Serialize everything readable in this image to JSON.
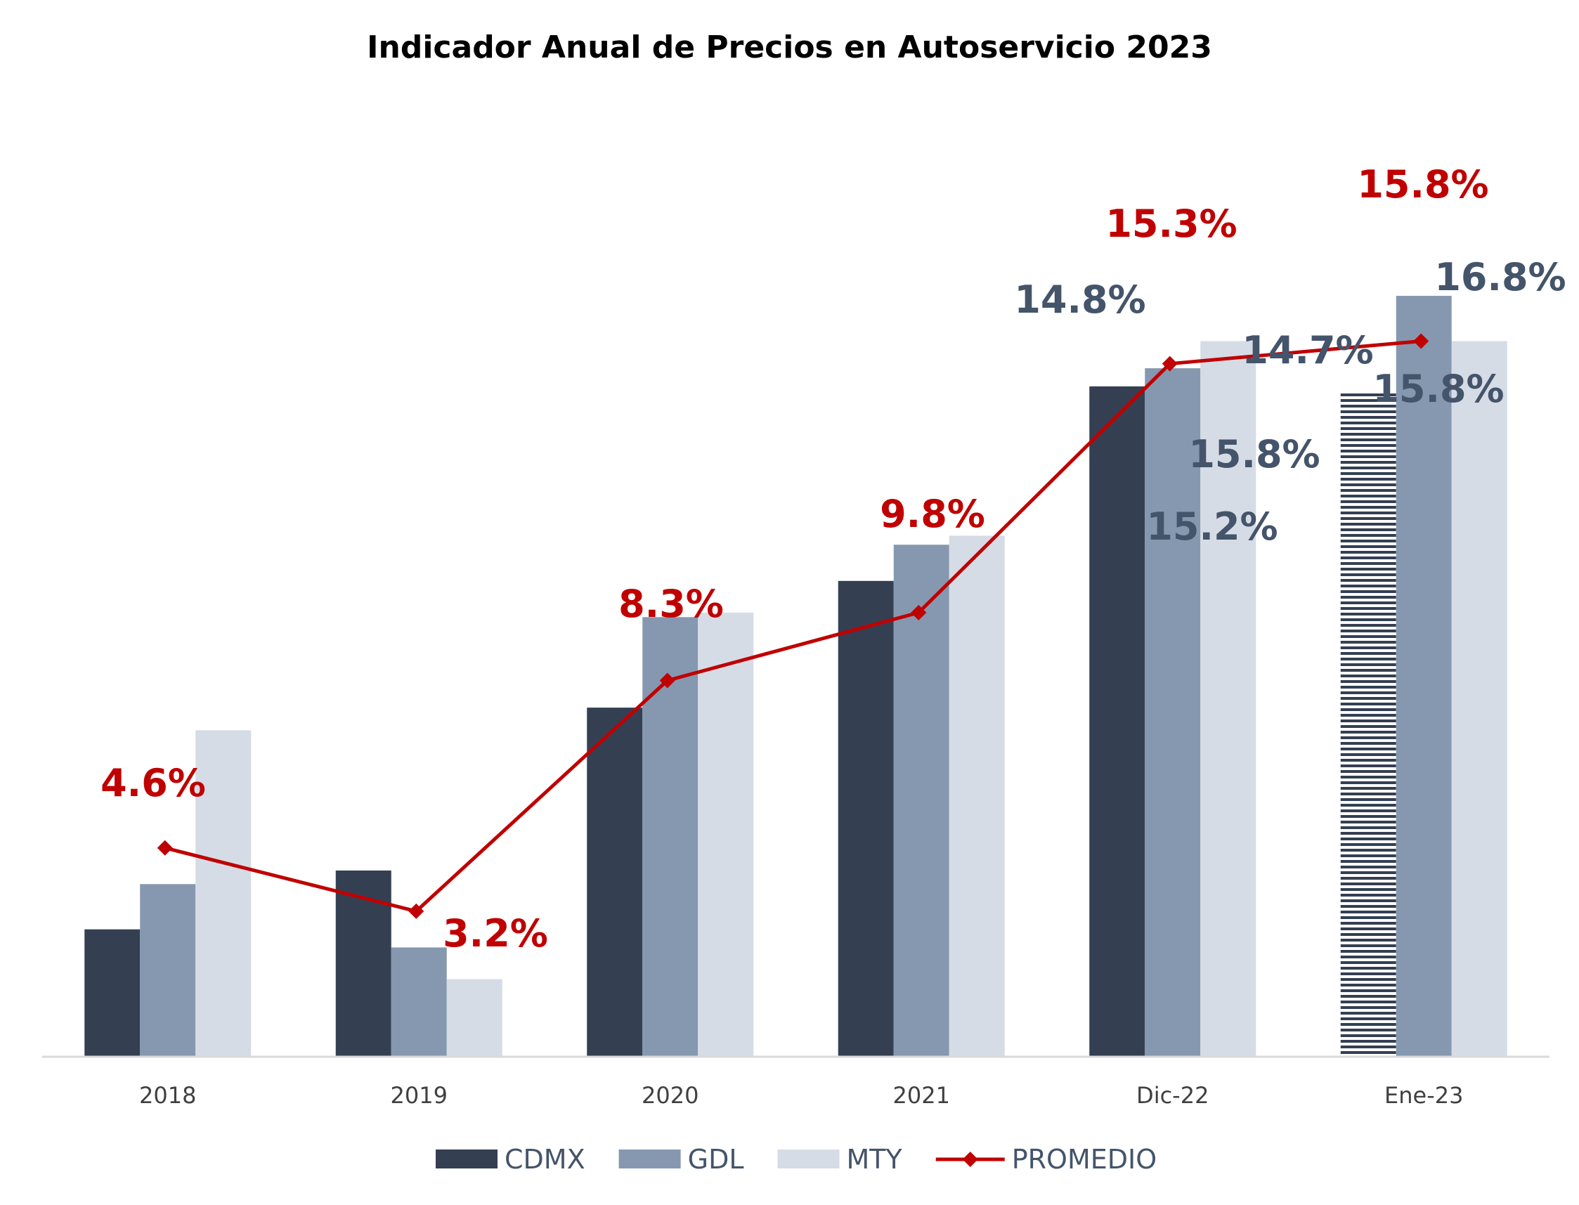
{
  "chart_data": {
    "type": "bar",
    "title": "Indicador Anual de Precios en Autoservicio 2023",
    "xlabel": "",
    "ylabel": "",
    "ylim": [
      0,
      20
    ],
    "grid": false,
    "legend_position": "bottom",
    "categories": [
      "2018",
      "2019",
      "2020",
      "2021",
      "Dic-22",
      "Ene-23"
    ],
    "series": [
      {
        "name": "CDMX",
        "kind": "bar",
        "color": "#343f52",
        "values": [
          2.8,
          4.1,
          7.7,
          10.5,
          14.8,
          14.7
        ],
        "hatched_index": 5
      },
      {
        "name": "GDL",
        "kind": "bar",
        "color": "#8598b0",
        "values": [
          3.8,
          2.4,
          9.7,
          11.3,
          15.2,
          16.8
        ]
      },
      {
        "name": "MTY",
        "kind": "bar",
        "color": "#d6dce5",
        "values": [
          7.2,
          1.7,
          9.8,
          11.5,
          15.8,
          15.8
        ]
      },
      {
        "name": "PROMEDIO",
        "kind": "line",
        "color": "#c00000",
        "marker": "diamond",
        "values": [
          4.6,
          3.2,
          8.3,
          9.8,
          15.3,
          15.8
        ]
      }
    ],
    "data_labels": [
      {
        "text": "4.6%",
        "series": "PROMEDIO",
        "index": 0
      },
      {
        "text": "3.2%",
        "series": "PROMEDIO",
        "index": 1
      },
      {
        "text": "8.3%",
        "series": "PROMEDIO",
        "index": 2
      },
      {
        "text": "9.8%",
        "series": "PROMEDIO",
        "index": 3
      },
      {
        "text": "15.3%",
        "series": "PROMEDIO",
        "index": 4
      },
      {
        "text": "15.8%",
        "series": "PROMEDIO",
        "index": 5
      },
      {
        "text": "14.8%",
        "series": "CDMX",
        "index": 4
      },
      {
        "text": "15.2%",
        "series": "GDL",
        "index": 4
      },
      {
        "text": "15.8%",
        "series": "MTY",
        "index": 4
      },
      {
        "text": "14.7%",
        "series": "CDMX",
        "index": 5
      },
      {
        "text": "16.8%",
        "series": "GDL",
        "index": 5
      },
      {
        "text": "15.8%",
        "series": "MTY",
        "index": 5
      }
    ],
    "colors": {
      "axis": "#d9d9d9",
      "tick_label": "#404040",
      "bar_label": "#44546a",
      "line_label": "#c00000"
    }
  }
}
